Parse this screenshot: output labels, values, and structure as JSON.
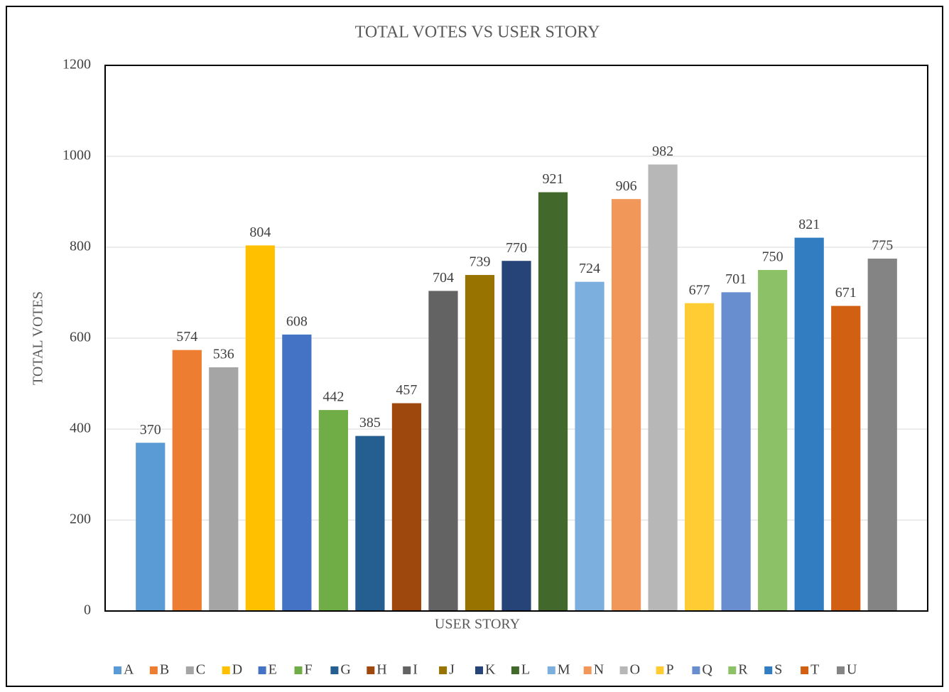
{
  "chart_data": {
    "type": "bar",
    "title": "TOTAL VOTES VS USER STORY",
    "x_label": "USER STORY",
    "y_label": "TOTAL VOTES",
    "categories": [
      "A",
      "B",
      "C",
      "D",
      "E",
      "F",
      "G",
      "H",
      "I",
      "J",
      "K",
      "L",
      "M",
      "N",
      "O",
      "P",
      "Q",
      "R",
      "S",
      "T",
      "U"
    ],
    "values": [
      370,
      574,
      536,
      804,
      608,
      442,
      385,
      457,
      704,
      739,
      770,
      921,
      724,
      906,
      982,
      677,
      701,
      750,
      821,
      671,
      775
    ],
    "colors": [
      "#5b9bd5",
      "#ed7d31",
      "#a5a5a5",
      "#ffc000",
      "#4472c4",
      "#70ad47",
      "#255e91",
      "#9e480e",
      "#636363",
      "#997300",
      "#264478",
      "#43682b",
      "#7cafdd",
      "#f1975a",
      "#b7b7b7",
      "#ffcd33",
      "#698ed0",
      "#8cc168",
      "#327dc2",
      "#d26012",
      "#848484"
    ],
    "ylim": [
      0,
      1200
    ],
    "yticks": [
      0,
      200,
      400,
      600,
      800,
      1000,
      1200
    ],
    "grid": true,
    "legend": "bottom"
  }
}
